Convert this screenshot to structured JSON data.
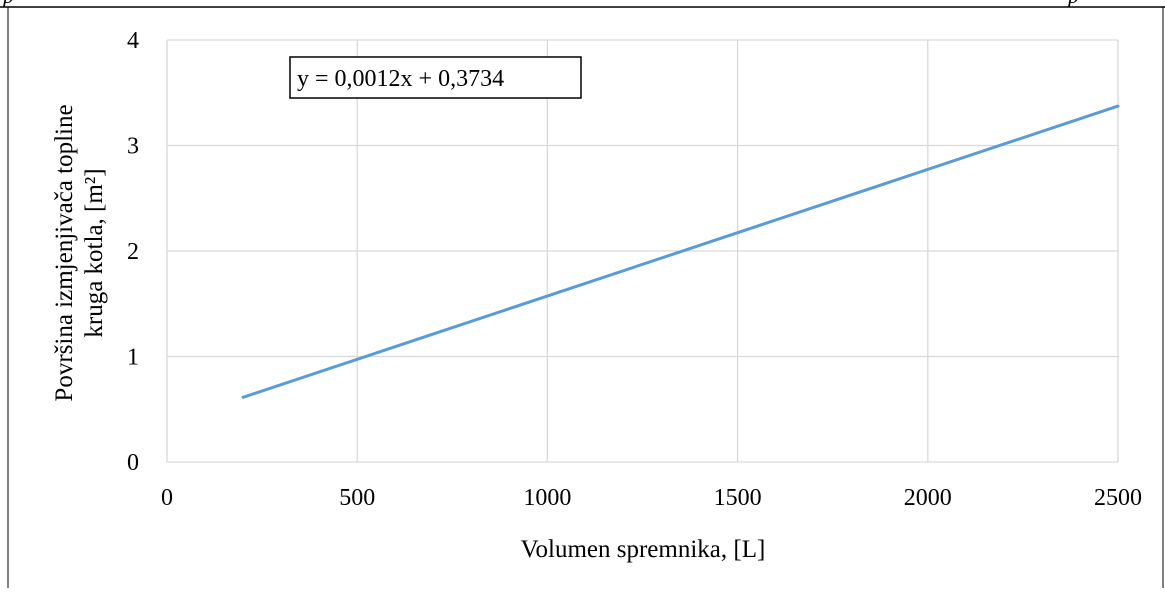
{
  "page": {
    "header_left_mark": "p",
    "header_right_mark": "p"
  },
  "chart_data": {
    "type": "line",
    "title": "",
    "xlabel": "Volumen spremnika, [L]",
    "ylabel_line1": "Površina izmjenjivača topline",
    "ylabel_line2": "kruga kotla, [m²]",
    "xlim": [
      0,
      2500
    ],
    "ylim": [
      0,
      4
    ],
    "x_ticks": [
      "0",
      "500",
      "1000",
      "1500",
      "2000",
      "2500"
    ],
    "y_ticks": [
      "0",
      "1",
      "2",
      "3",
      "4"
    ],
    "grid": true,
    "legend": "none",
    "trendline_equation": "y = 0,0012x + 0,3734",
    "series": [
      {
        "color": "#5b9bd5",
        "x": [
          200,
          2500
        ],
        "y": [
          0.6134,
          3.3734
        ]
      }
    ]
  }
}
